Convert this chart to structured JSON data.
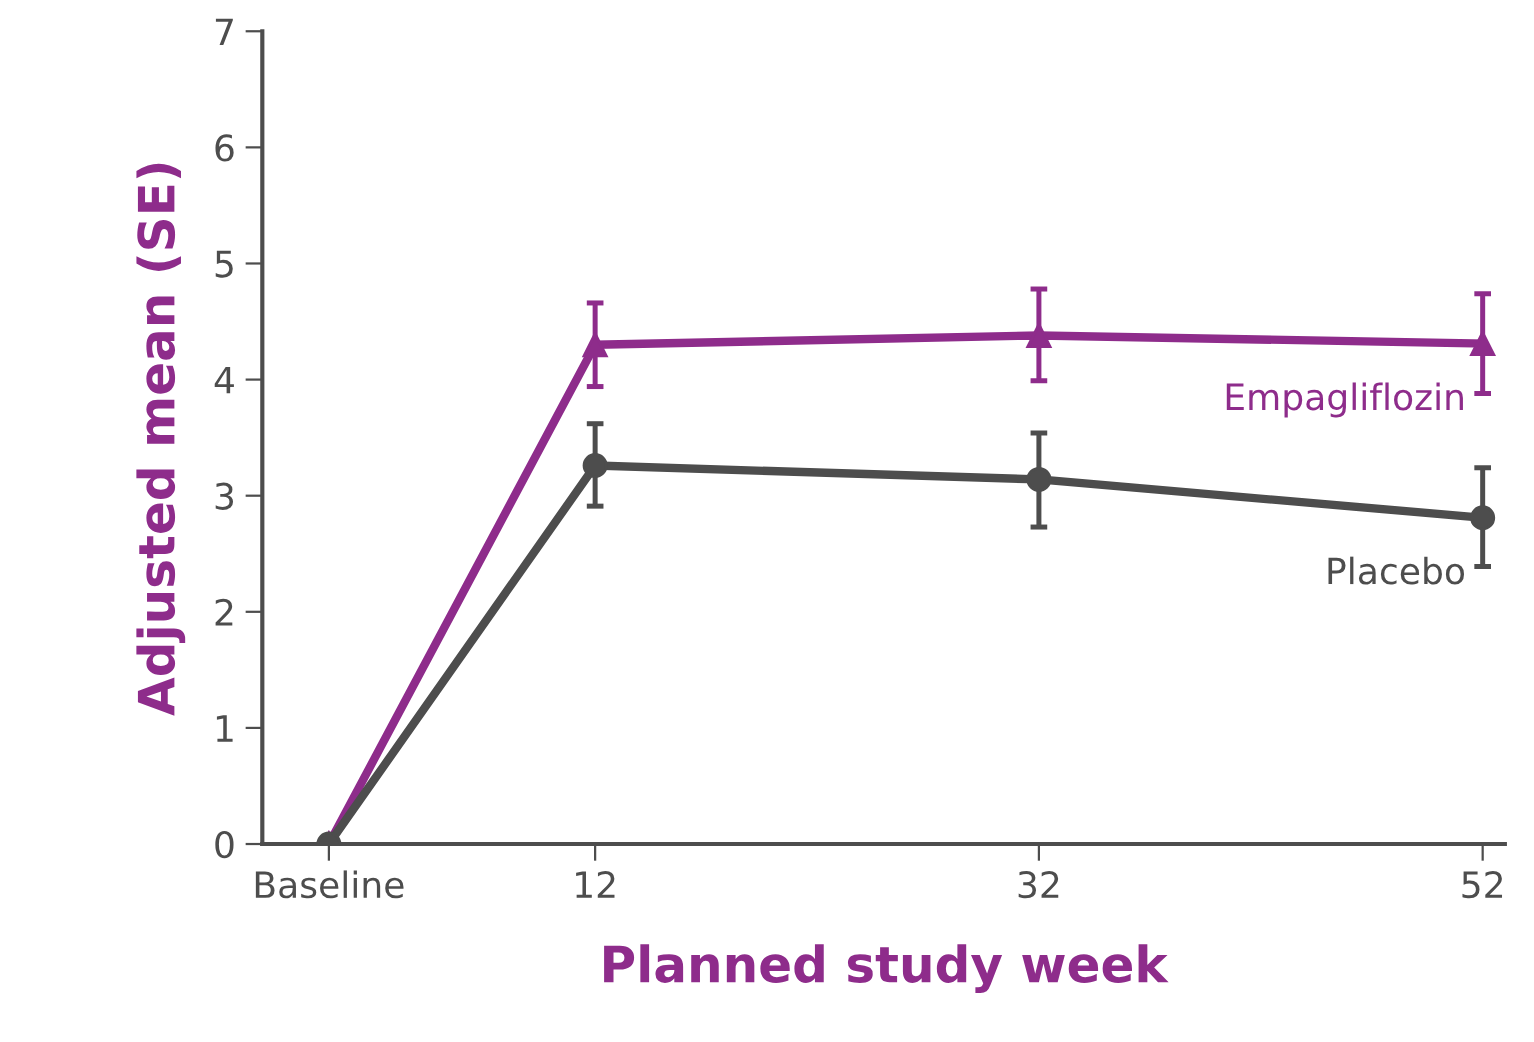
{
  "chart_data": {
    "type": "line",
    "xlabel": "Planned study week",
    "ylabel": "Adjusted mean (SE)",
    "x": [
      0,
      12,
      32,
      52
    ],
    "xlim": [
      -3,
      53
    ],
    "xticks": [
      {
        "value": 0,
        "label": "Baseline"
      },
      12,
      32,
      52
    ],
    "ylim": [
      0,
      7
    ],
    "yticks": [
      0,
      1,
      2,
      3,
      4,
      5,
      6,
      7
    ],
    "grid": false,
    "legend": false,
    "series": [
      {
        "name": "Empagliflozin",
        "color": "#8e2c8b",
        "marker": "triangle",
        "values": [
          0,
          4.3,
          4.38,
          4.31
        ],
        "errors": [
          null,
          [
            3.94,
            4.66
          ],
          [
            3.99,
            4.78
          ],
          [
            3.88,
            4.74
          ]
        ]
      },
      {
        "name": "Placebo",
        "color": "#4d4d4d",
        "marker": "circle",
        "values": [
          0,
          3.26,
          3.14,
          2.81
        ],
        "errors": [
          null,
          [
            2.91,
            3.62
          ],
          [
            2.73,
            3.54
          ],
          [
            2.39,
            3.24
          ]
        ]
      }
    ]
  }
}
